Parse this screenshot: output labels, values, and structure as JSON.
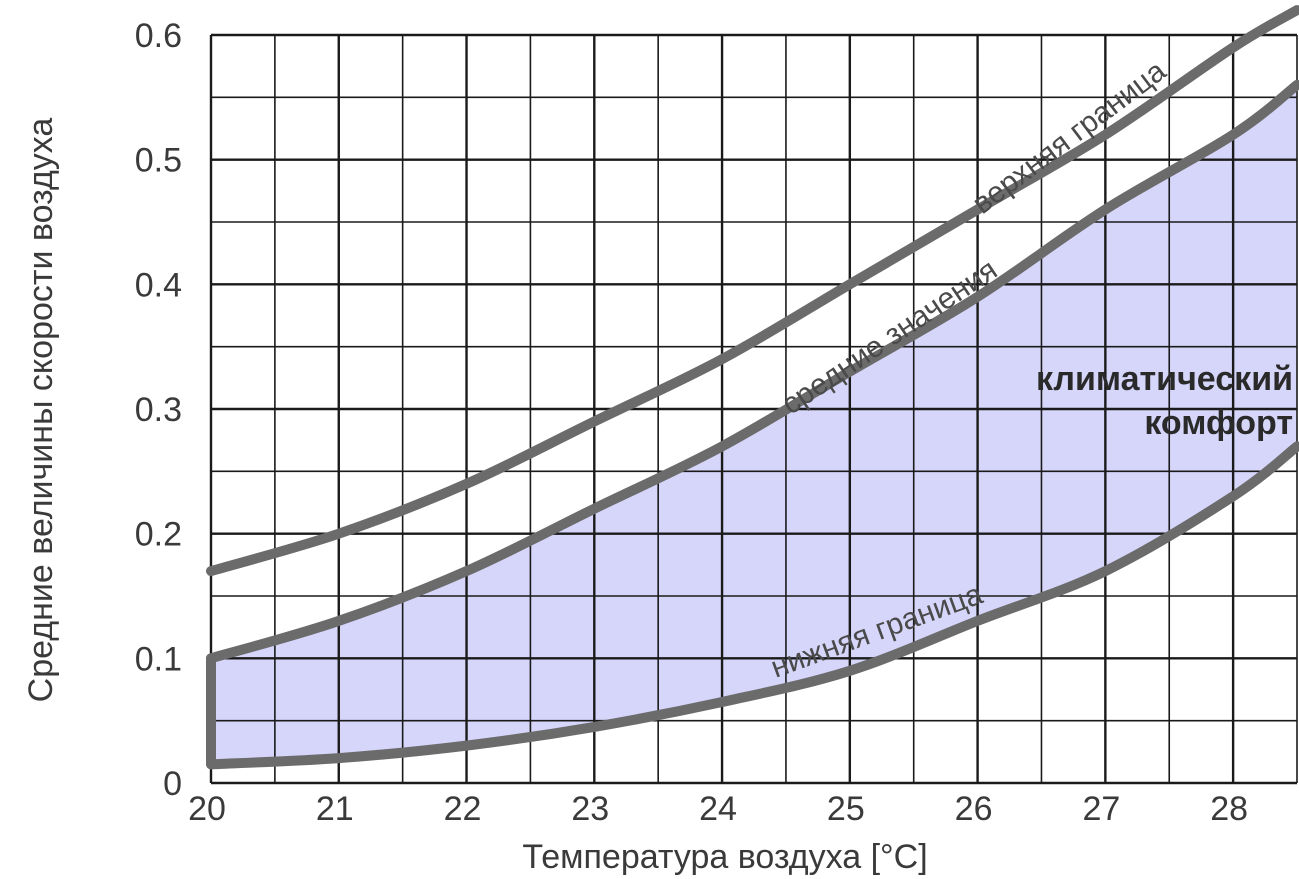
{
  "chart_data": {
    "type": "line",
    "xlabel": "Температура воздуха [°С]",
    "ylabel": "Средние величины скорости воздуха",
    "xlim": [
      20,
      28.5
    ],
    "ylim": [
      0,
      0.6
    ],
    "x_ticks": [
      "20",
      "21",
      "22",
      "23",
      "24",
      "25",
      "26",
      "27",
      "28"
    ],
    "y_ticks": [
      "0",
      "0.1",
      "0.2",
      "0.3",
      "0.4",
      "0.5",
      "0.6"
    ],
    "grid": true,
    "x": [
      20,
      21,
      22,
      23,
      24,
      25,
      26,
      27,
      28,
      28.5
    ],
    "series": [
      {
        "name": "верхняя граница",
        "values": [
          0.17,
          0.2,
          0.24,
          0.29,
          0.34,
          0.4,
          0.46,
          0.52,
          0.59,
          0.62
        ]
      },
      {
        "name": "средние значения",
        "values": [
          0.1,
          0.13,
          0.17,
          0.22,
          0.27,
          0.33,
          0.39,
          0.46,
          0.52,
          0.56
        ]
      },
      {
        "name": "нижняя граница",
        "values": [
          0.015,
          0.02,
          0.03,
          0.045,
          0.065,
          0.09,
          0.13,
          0.17,
          0.23,
          0.27
        ]
      }
    ],
    "shaded_region": {
      "label": "климатический комфорт",
      "between": [
        "средние значения",
        "нижняя граница"
      ],
      "color": "#d6d6fb"
    },
    "annotations": [
      "климатический",
      "комфорт"
    ],
    "colors": {
      "curve": "#6b6b6b",
      "grid": "#1a1a1a",
      "fill": "#d6d6fb"
    }
  }
}
